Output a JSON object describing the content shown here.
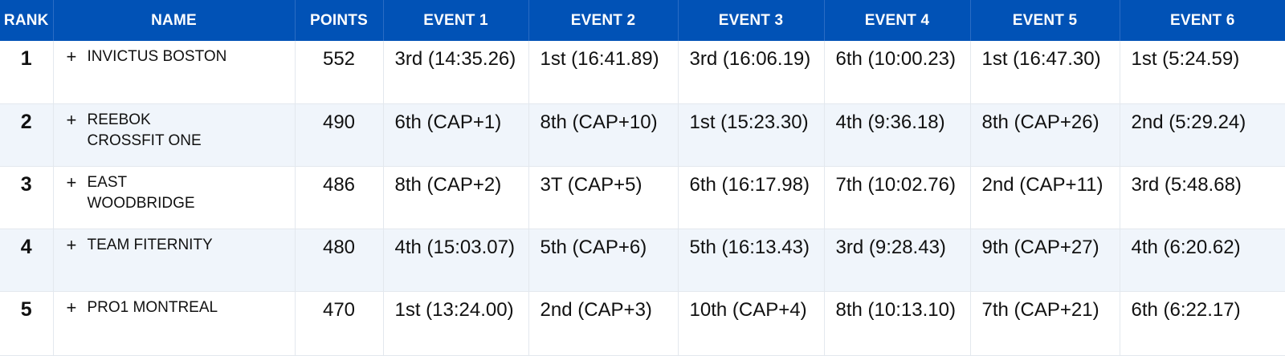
{
  "headers": {
    "rank": "RANK",
    "name": "NAME",
    "points": "POINTS",
    "events": [
      "EVENT 1",
      "EVENT 2",
      "EVENT 3",
      "EVENT 4",
      "EVENT 5",
      "EVENT 6"
    ]
  },
  "expand_symbol": "+",
  "rows": [
    {
      "rank": "1",
      "name": "INVICTUS BOSTON",
      "points": "552",
      "events": [
        "3rd (14:35.26)",
        "1st (16:41.89)",
        "3rd (16:06.19)",
        "6th (10:00.23)",
        "1st (16:47.30)",
        "1st (5:24.59)"
      ]
    },
    {
      "rank": "2",
      "name": "REEBOK CROSSFIT ONE",
      "points": "490",
      "events": [
        "6th (CAP+1)",
        "8th (CAP+10)",
        "1st (15:23.30)",
        "4th (9:36.18)",
        "8th (CAP+26)",
        "2nd (5:29.24)"
      ]
    },
    {
      "rank": "3",
      "name": "EAST WOODBRIDGE",
      "points": "486",
      "events": [
        "8th (CAP+2)",
        "3T (CAP+5)",
        "6th (16:17.98)",
        "7th (10:02.76)",
        "2nd (CAP+11)",
        "3rd (5:48.68)"
      ]
    },
    {
      "rank": "4",
      "name": "TEAM FITERNITY",
      "points": "480",
      "events": [
        "4th (15:03.07)",
        "5th (CAP+6)",
        "5th (16:13.43)",
        "3rd (9:28.43)",
        "9th (CAP+27)",
        "4th (6:20.62)"
      ]
    },
    {
      "rank": "5",
      "name": "PRO1 MONTREAL",
      "points": "470",
      "events": [
        "1st (13:24.00)",
        "2nd (CAP+3)",
        "10th (CAP+4)",
        "8th (10:13.10)",
        "7th (CAP+21)",
        "6th (6:22.17)"
      ]
    }
  ]
}
